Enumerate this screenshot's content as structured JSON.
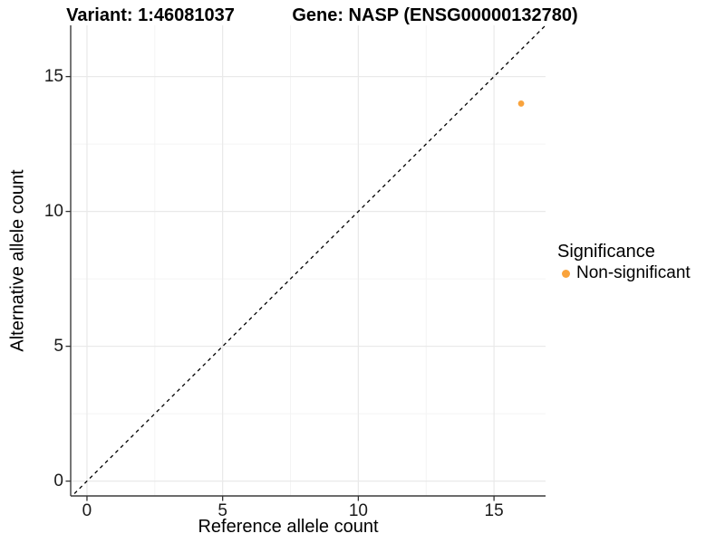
{
  "titles": {
    "variant": "Variant: 1:46081037",
    "gene": "Gene: NASP (ENSG00000132780)"
  },
  "legend": {
    "title": "Significance",
    "items": [
      {
        "label": "Non-significant",
        "color": "#F9A33C"
      }
    ]
  },
  "colors": {
    "point": "#F9A33C",
    "grid_major": "#E9E9E9",
    "grid_minor": "#F4F4F4",
    "axis_line": "#3c3c3c",
    "tick_mark": "#333333",
    "reference_line": "#000000"
  },
  "chart_data": {
    "type": "scatter",
    "title_left": "Variant: 1:46081037",
    "title_right": "Gene: NASP (ENSG00000132780)",
    "xlabel": "Reference allele count",
    "ylabel": "Alternative allele count",
    "xlim": [
      -0.6,
      16.9
    ],
    "ylim": [
      -0.55,
      16.9
    ],
    "x_ticks": [
      0,
      5,
      10,
      15
    ],
    "y_ticks": [
      0,
      5,
      10,
      15
    ],
    "x_minor": [
      2.5,
      7.5,
      12.5
    ],
    "y_minor": [
      2.5,
      7.5,
      12.5
    ],
    "grid": true,
    "legend_position": "right",
    "series": [
      {
        "name": "Non-significant",
        "color": "#F9A33C",
        "points": [
          {
            "x": 16,
            "y": 14
          }
        ]
      }
    ],
    "reference_line": {
      "type": "identity",
      "slope": 1,
      "intercept": 0,
      "style": "dashed",
      "color": "#000000"
    }
  }
}
